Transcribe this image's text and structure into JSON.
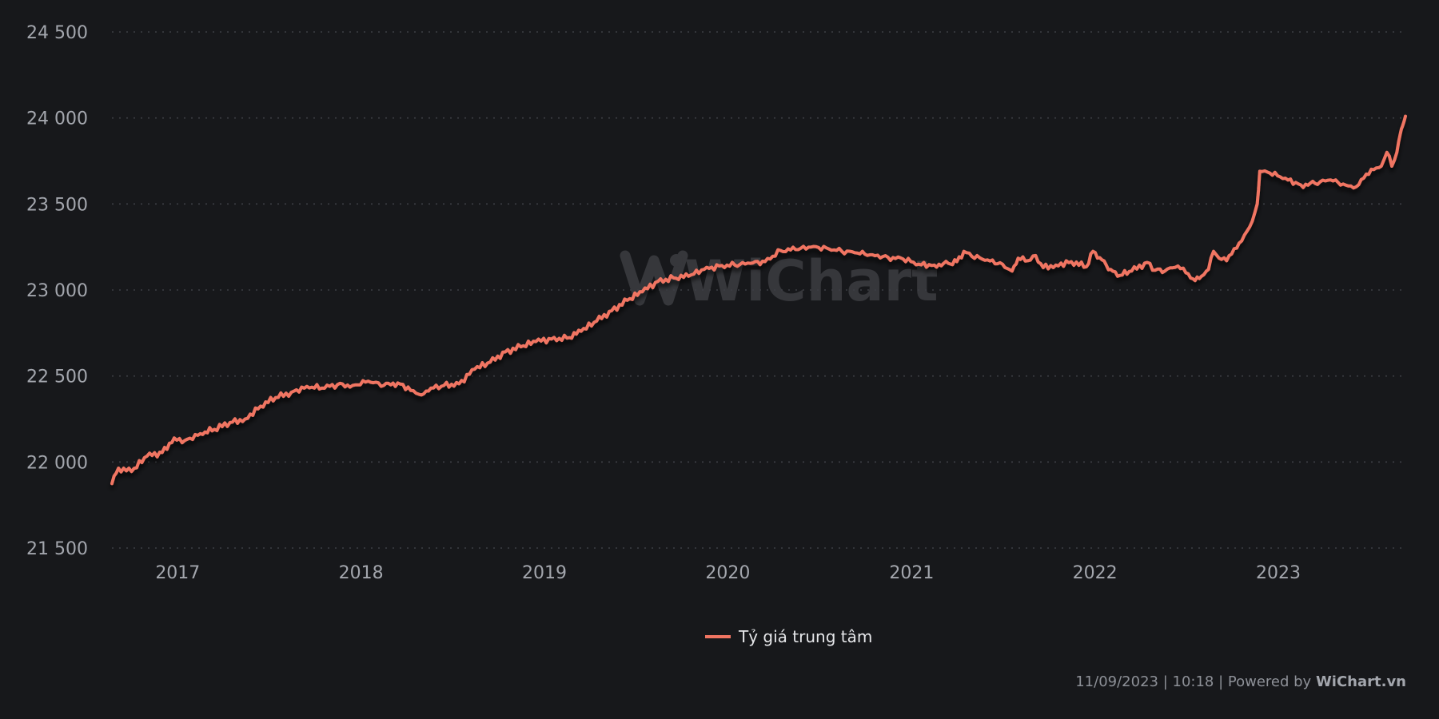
{
  "chart_data": {
    "type": "line",
    "yticks": [
      "24 500",
      "24 000",
      "23 500",
      "23 000",
      "22 500",
      "22 000",
      "21 500"
    ],
    "ytick_values": [
      24500,
      24000,
      23500,
      23000,
      22500,
      22000,
      21500
    ],
    "ylim": [
      21500,
      24500
    ],
    "xlim": [
      "2016-08-23",
      "2023-09-11"
    ],
    "xticks": [
      "2017",
      "2018",
      "2019",
      "2020",
      "2021",
      "2022",
      "2023"
    ],
    "xtick_dates": [
      "2017-01-01",
      "2018-01-01",
      "2019-01-01",
      "2020-01-01",
      "2021-01-01",
      "2022-01-01",
      "2023-01-01"
    ],
    "grid": true,
    "legend_position": "bottom-center",
    "series": [
      {
        "name": "Tỷ giá trung tâm",
        "color": "#f07562",
        "points": [
          [
            "2016-08-23",
            21875
          ],
          [
            "2016-09-05",
            21965
          ],
          [
            "2016-10-01",
            21945
          ],
          [
            "2016-11-01",
            22035
          ],
          [
            "2016-12-01",
            22055
          ],
          [
            "2016-12-25",
            22140
          ],
          [
            "2017-01-15",
            22125
          ],
          [
            "2017-02-15",
            22165
          ],
          [
            "2017-03-15",
            22190
          ],
          [
            "2017-04-15",
            22230
          ],
          [
            "2017-05-15",
            22250
          ],
          [
            "2017-06-15",
            22325
          ],
          [
            "2017-07-15",
            22375
          ],
          [
            "2017-08-15",
            22405
          ],
          [
            "2017-09-15",
            22440
          ],
          [
            "2017-10-15",
            22430
          ],
          [
            "2017-11-15",
            22450
          ],
          [
            "2017-12-15",
            22445
          ],
          [
            "2018-01-15",
            22470
          ],
          [
            "2018-02-15",
            22445
          ],
          [
            "2018-03-15",
            22460
          ],
          [
            "2018-04-15",
            22415
          ],
          [
            "2018-05-01",
            22390
          ],
          [
            "2018-05-20",
            22430
          ],
          [
            "2018-06-15",
            22445
          ],
          [
            "2018-07-15",
            22455
          ],
          [
            "2018-08-15",
            22540
          ],
          [
            "2018-09-15",
            22580
          ],
          [
            "2018-10-15",
            22640
          ],
          [
            "2018-11-15",
            22670
          ],
          [
            "2018-12-15",
            22700
          ],
          [
            "2019-01-15",
            22715
          ],
          [
            "2019-02-15",
            22720
          ],
          [
            "2019-03-15",
            22760
          ],
          [
            "2019-04-15",
            22820
          ],
          [
            "2019-05-15",
            22880
          ],
          [
            "2019-06-15",
            22940
          ],
          [
            "2019-07-15",
            22990
          ],
          [
            "2019-08-15",
            23050
          ],
          [
            "2019-09-15",
            23070
          ],
          [
            "2019-10-15",
            23080
          ],
          [
            "2019-11-15",
            23120
          ],
          [
            "2019-12-15",
            23140
          ],
          [
            "2020-01-15",
            23145
          ],
          [
            "2020-02-15",
            23155
          ],
          [
            "2020-03-15",
            23165
          ],
          [
            "2020-04-15",
            23230
          ],
          [
            "2020-05-15",
            23235
          ],
          [
            "2020-06-15",
            23250
          ],
          [
            "2020-07-15",
            23245
          ],
          [
            "2020-08-15",
            23225
          ],
          [
            "2020-09-15",
            23215
          ],
          [
            "2020-10-15",
            23205
          ],
          [
            "2020-11-15",
            23190
          ],
          [
            "2020-12-15",
            23180
          ],
          [
            "2021-01-15",
            23150
          ],
          [
            "2021-02-15",
            23145
          ],
          [
            "2021-03-15",
            23155
          ],
          [
            "2021-04-01",
            23165
          ],
          [
            "2021-04-15",
            23225
          ],
          [
            "2021-05-01",
            23195
          ],
          [
            "2021-06-01",
            23175
          ],
          [
            "2021-07-01",
            23150
          ],
          [
            "2021-07-20",
            23110
          ],
          [
            "2021-08-01",
            23185
          ],
          [
            "2021-08-20",
            23170
          ],
          [
            "2021-09-05",
            23200
          ],
          [
            "2021-09-20",
            23130
          ],
          [
            "2021-10-15",
            23145
          ],
          [
            "2021-11-15",
            23165
          ],
          [
            "2021-12-15",
            23135
          ],
          [
            "2021-12-28",
            23225
          ],
          [
            "2022-01-15",
            23175
          ],
          [
            "2022-02-01",
            23120
          ],
          [
            "2022-02-15",
            23080
          ],
          [
            "2022-03-15",
            23110
          ],
          [
            "2022-04-15",
            23160
          ],
          [
            "2022-05-01",
            23115
          ],
          [
            "2022-05-20",
            23110
          ],
          [
            "2022-06-15",
            23140
          ],
          [
            "2022-07-01",
            23100
          ],
          [
            "2022-07-15",
            23065
          ],
          [
            "2022-08-01",
            23080
          ],
          [
            "2022-08-15",
            23120
          ],
          [
            "2022-08-25",
            23225
          ],
          [
            "2022-09-05",
            23185
          ],
          [
            "2022-09-20",
            23170
          ],
          [
            "2022-10-05",
            23240
          ],
          [
            "2022-10-20",
            23285
          ],
          [
            "2022-11-10",
            23400
          ],
          [
            "2022-11-20",
            23500
          ],
          [
            "2022-11-25",
            23690
          ],
          [
            "2022-12-15",
            23680
          ],
          [
            "2023-01-15",
            23650
          ],
          [
            "2023-02-15",
            23610
          ],
          [
            "2023-03-15",
            23620
          ],
          [
            "2023-04-15",
            23640
          ],
          [
            "2023-05-15",
            23610
          ],
          [
            "2023-06-05",
            23600
          ],
          [
            "2023-06-20",
            23650
          ],
          [
            "2023-07-10",
            23700
          ],
          [
            "2023-07-25",
            23720
          ],
          [
            "2023-08-05",
            23800
          ],
          [
            "2023-08-15",
            23720
          ],
          [
            "2023-08-25",
            23800
          ],
          [
            "2023-09-01",
            23910
          ],
          [
            "2023-09-05",
            23950
          ],
          [
            "2023-09-11",
            24010
          ]
        ]
      }
    ],
    "watermark": "WiChart"
  },
  "footer": {
    "timestamp": "11/09/2023 | 10:18 | Powered by",
    "brand": "WiChart.vn"
  },
  "colors": {
    "background": "#17181b",
    "line": "#f07562",
    "grid": "#3d3f44",
    "tick_text": "#a3a6ad"
  }
}
